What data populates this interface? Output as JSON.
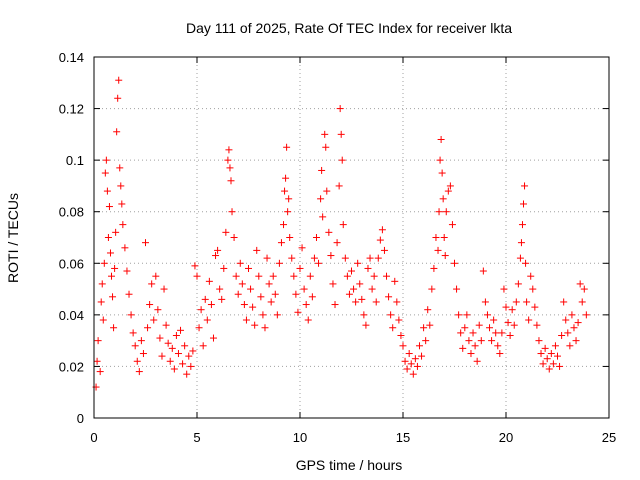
{
  "chart_data": {
    "type": "scatter",
    "title": "Day 111 of 2025, Rate Of TEC Index for receiver lkta",
    "xlabel": "GPS time / hours",
    "ylabel": "ROTI / TECUs",
    "xlim": [
      0,
      25
    ],
    "ylim": [
      0,
      0.14
    ],
    "xticks": [
      0,
      5,
      10,
      15,
      20,
      25
    ],
    "xtick_labels": [
      "0",
      "5",
      "10",
      "15",
      "20",
      "25"
    ],
    "yticks": [
      0,
      0.02,
      0.04,
      0.06,
      0.08,
      0.1,
      0.12,
      0.14
    ],
    "ytick_labels": [
      "0",
      "0.02",
      "0.04",
      "0.06",
      "0.08",
      "0.1",
      "0.12",
      "0.14"
    ],
    "grid": true,
    "marker": "+",
    "color": "#ff0000",
    "series": [
      {
        "name": "ROTI",
        "points": [
          [
            0.1,
            0.012
          ],
          [
            0.15,
            0.022
          ],
          [
            0.2,
            0.03
          ],
          [
            0.3,
            0.018
          ],
          [
            0.35,
            0.045
          ],
          [
            0.4,
            0.052
          ],
          [
            0.45,
            0.038
          ],
          [
            0.5,
            0.06
          ],
          [
            0.55,
            0.095
          ],
          [
            0.6,
            0.1
          ],
          [
            0.65,
            0.088
          ],
          [
            0.7,
            0.07
          ],
          [
            0.75,
            0.082
          ],
          [
            0.8,
            0.064
          ],
          [
            0.85,
            0.055
          ],
          [
            0.9,
            0.047
          ],
          [
            0.95,
            0.035
          ],
          [
            1.0,
            0.058
          ],
          [
            1.05,
            0.072
          ],
          [
            1.1,
            0.111
          ],
          [
            1.15,
            0.124
          ],
          [
            1.2,
            0.131
          ],
          [
            1.25,
            0.097
          ],
          [
            1.3,
            0.09
          ],
          [
            1.35,
            0.083
          ],
          [
            1.4,
            0.075
          ],
          [
            1.5,
            0.066
          ],
          [
            1.6,
            0.057
          ],
          [
            1.7,
            0.048
          ],
          [
            1.8,
            0.04
          ],
          [
            1.9,
            0.033
          ],
          [
            2.0,
            0.028
          ],
          [
            2.1,
            0.022
          ],
          [
            2.2,
            0.018
          ],
          [
            2.3,
            0.03
          ],
          [
            2.4,
            0.025
          ],
          [
            2.5,
            0.068
          ],
          [
            2.6,
            0.035
          ],
          [
            2.7,
            0.044
          ],
          [
            2.8,
            0.052
          ],
          [
            2.9,
            0.038
          ],
          [
            3.0,
            0.055
          ],
          [
            3.1,
            0.042
          ],
          [
            3.2,
            0.031
          ],
          [
            3.3,
            0.024
          ],
          [
            3.4,
            0.05
          ],
          [
            3.5,
            0.036
          ],
          [
            3.6,
            0.029
          ],
          [
            3.7,
            0.022
          ],
          [
            3.8,
            0.027
          ],
          [
            3.9,
            0.019
          ],
          [
            4.0,
            0.032
          ],
          [
            4.1,
            0.025
          ],
          [
            4.2,
            0.034
          ],
          [
            4.3,
            0.021
          ],
          [
            4.4,
            0.028
          ],
          [
            4.5,
            0.017
          ],
          [
            4.6,
            0.024
          ],
          [
            4.7,
            0.02
          ],
          [
            4.8,
            0.026
          ],
          [
            4.9,
            0.059
          ],
          [
            5.0,
            0.055
          ],
          [
            5.1,
            0.035
          ],
          [
            5.2,
            0.042
          ],
          [
            5.3,
            0.028
          ],
          [
            5.4,
            0.046
          ],
          [
            5.5,
            0.038
          ],
          [
            5.6,
            0.053
          ],
          [
            5.7,
            0.044
          ],
          [
            5.8,
            0.031
          ],
          [
            5.9,
            0.063
          ],
          [
            6.0,
            0.065
          ],
          [
            6.1,
            0.05
          ],
          [
            6.2,
            0.046
          ],
          [
            6.3,
            0.058
          ],
          [
            6.4,
            0.072
          ],
          [
            6.5,
            0.1
          ],
          [
            6.55,
            0.104
          ],
          [
            6.6,
            0.097
          ],
          [
            6.65,
            0.092
          ],
          [
            6.7,
            0.08
          ],
          [
            6.8,
            0.07
          ],
          [
            6.9,
            0.055
          ],
          [
            7.0,
            0.048
          ],
          [
            7.1,
            0.06
          ],
          [
            7.2,
            0.052
          ],
          [
            7.3,
            0.044
          ],
          [
            7.4,
            0.038
          ],
          [
            7.5,
            0.058
          ],
          [
            7.6,
            0.05
          ],
          [
            7.7,
            0.043
          ],
          [
            7.8,
            0.036
          ],
          [
            7.9,
            0.065
          ],
          [
            8.0,
            0.055
          ],
          [
            8.1,
            0.047
          ],
          [
            8.2,
            0.04
          ],
          [
            8.3,
            0.035
          ],
          [
            8.4,
            0.062
          ],
          [
            8.5,
            0.052
          ],
          [
            8.6,
            0.045
          ],
          [
            8.7,
            0.055
          ],
          [
            8.8,
            0.048
          ],
          [
            8.9,
            0.04
          ],
          [
            9.0,
            0.06
          ],
          [
            9.1,
            0.068
          ],
          [
            9.2,
            0.075
          ],
          [
            9.25,
            0.088
          ],
          [
            9.3,
            0.093
          ],
          [
            9.35,
            0.105
          ],
          [
            9.4,
            0.08
          ],
          [
            9.45,
            0.085
          ],
          [
            9.5,
            0.07
          ],
          [
            9.6,
            0.062
          ],
          [
            9.7,
            0.055
          ],
          [
            9.8,
            0.048
          ],
          [
            9.9,
            0.041
          ],
          [
            10.0,
            0.058
          ],
          [
            10.1,
            0.066
          ],
          [
            10.2,
            0.05
          ],
          [
            10.3,
            0.044
          ],
          [
            10.4,
            0.038
          ],
          [
            10.5,
            0.055
          ],
          [
            10.6,
            0.047
          ],
          [
            10.7,
            0.062
          ],
          [
            10.8,
            0.07
          ],
          [
            10.9,
            0.06
          ],
          [
            11.0,
            0.085
          ],
          [
            11.05,
            0.096
          ],
          [
            11.1,
            0.078
          ],
          [
            11.2,
            0.11
          ],
          [
            11.25,
            0.105
          ],
          [
            11.3,
            0.088
          ],
          [
            11.4,
            0.072
          ],
          [
            11.5,
            0.063
          ],
          [
            11.6,
            0.052
          ],
          [
            11.7,
            0.044
          ],
          [
            11.8,
            0.068
          ],
          [
            11.9,
            0.09
          ],
          [
            11.95,
            0.12
          ],
          [
            12.0,
            0.11
          ],
          [
            12.05,
            0.1
          ],
          [
            12.1,
            0.075
          ],
          [
            12.2,
            0.062
          ],
          [
            12.3,
            0.055
          ],
          [
            12.4,
            0.048
          ],
          [
            12.5,
            0.057
          ],
          [
            12.6,
            0.05
          ],
          [
            12.7,
            0.045
          ],
          [
            12.8,
            0.06
          ],
          [
            12.9,
            0.052
          ],
          [
            13.0,
            0.046
          ],
          [
            13.1,
            0.04
          ],
          [
            13.2,
            0.036
          ],
          [
            13.3,
            0.058
          ],
          [
            13.4,
            0.062
          ],
          [
            13.5,
            0.05
          ],
          [
            13.6,
            0.055
          ],
          [
            13.7,
            0.045
          ],
          [
            13.8,
            0.062
          ],
          [
            13.9,
            0.069
          ],
          [
            14.0,
            0.073
          ],
          [
            14.1,
            0.065
          ],
          [
            14.2,
            0.055
          ],
          [
            14.3,
            0.047
          ],
          [
            14.4,
            0.04
          ],
          [
            14.5,
            0.035
          ],
          [
            14.6,
            0.053
          ],
          [
            14.7,
            0.045
          ],
          [
            14.8,
            0.038
          ],
          [
            14.9,
            0.032
          ],
          [
            15.0,
            0.028
          ],
          [
            15.1,
            0.022
          ],
          [
            15.2,
            0.019
          ],
          [
            15.3,
            0.025
          ],
          [
            15.4,
            0.021
          ],
          [
            15.5,
            0.017
          ],
          [
            15.6,
            0.023
          ],
          [
            15.7,
            0.02
          ],
          [
            15.8,
            0.028
          ],
          [
            15.9,
            0.024
          ],
          [
            16.0,
            0.035
          ],
          [
            16.1,
            0.03
          ],
          [
            16.2,
            0.042
          ],
          [
            16.3,
            0.036
          ],
          [
            16.4,
            0.05
          ],
          [
            16.5,
            0.058
          ],
          [
            16.6,
            0.07
          ],
          [
            16.7,
            0.065
          ],
          [
            16.75,
            0.08
          ],
          [
            16.8,
            0.1
          ],
          [
            16.85,
            0.108
          ],
          [
            16.9,
            0.095
          ],
          [
            16.95,
            0.085
          ],
          [
            17.0,
            0.07
          ],
          [
            17.05,
            0.063
          ],
          [
            17.1,
            0.08
          ],
          [
            17.2,
            0.088
          ],
          [
            17.3,
            0.09
          ],
          [
            17.4,
            0.075
          ],
          [
            17.5,
            0.06
          ],
          [
            17.6,
            0.05
          ],
          [
            17.7,
            0.04
          ],
          [
            17.8,
            0.033
          ],
          [
            17.9,
            0.027
          ],
          [
            18.0,
            0.035
          ],
          [
            18.1,
            0.04
          ],
          [
            18.2,
            0.03
          ],
          [
            18.3,
            0.025
          ],
          [
            18.4,
            0.033
          ],
          [
            18.5,
            0.028
          ],
          [
            18.6,
            0.022
          ],
          [
            18.7,
            0.036
          ],
          [
            18.8,
            0.03
          ],
          [
            18.9,
            0.057
          ],
          [
            19.0,
            0.045
          ],
          [
            19.1,
            0.04
          ],
          [
            19.2,
            0.035
          ],
          [
            19.3,
            0.03
          ],
          [
            19.4,
            0.038
          ],
          [
            19.5,
            0.033
          ],
          [
            19.6,
            0.028
          ],
          [
            19.7,
            0.025
          ],
          [
            19.8,
            0.033
          ],
          [
            19.9,
            0.05
          ],
          [
            20.0,
            0.043
          ],
          [
            20.1,
            0.037
          ],
          [
            20.2,
            0.032
          ],
          [
            20.3,
            0.042
          ],
          [
            20.4,
            0.036
          ],
          [
            20.5,
            0.045
          ],
          [
            20.6,
            0.052
          ],
          [
            20.7,
            0.062
          ],
          [
            20.75,
            0.068
          ],
          [
            20.8,
            0.075
          ],
          [
            20.85,
            0.083
          ],
          [
            20.9,
            0.09
          ],
          [
            20.95,
            0.06
          ],
          [
            21.0,
            0.045
          ],
          [
            21.1,
            0.038
          ],
          [
            21.2,
            0.055
          ],
          [
            21.3,
            0.05
          ],
          [
            21.4,
            0.043
          ],
          [
            21.5,
            0.036
          ],
          [
            21.6,
            0.03
          ],
          [
            21.7,
            0.025
          ],
          [
            21.8,
            0.021
          ],
          [
            21.9,
            0.027
          ],
          [
            22.0,
            0.023
          ],
          [
            22.1,
            0.019
          ],
          [
            22.2,
            0.025
          ],
          [
            22.3,
            0.021
          ],
          [
            22.4,
            0.028
          ],
          [
            22.5,
            0.024
          ],
          [
            22.6,
            0.02
          ],
          [
            22.7,
            0.032
          ],
          [
            22.8,
            0.045
          ],
          [
            22.9,
            0.038
          ],
          [
            23.0,
            0.033
          ],
          [
            23.1,
            0.028
          ],
          [
            23.2,
            0.04
          ],
          [
            23.3,
            0.035
          ],
          [
            23.4,
            0.03
          ],
          [
            23.5,
            0.037
          ],
          [
            23.6,
            0.052
          ],
          [
            23.7,
            0.045
          ],
          [
            23.8,
            0.05
          ],
          [
            23.9,
            0.04
          ]
        ]
      }
    ]
  }
}
